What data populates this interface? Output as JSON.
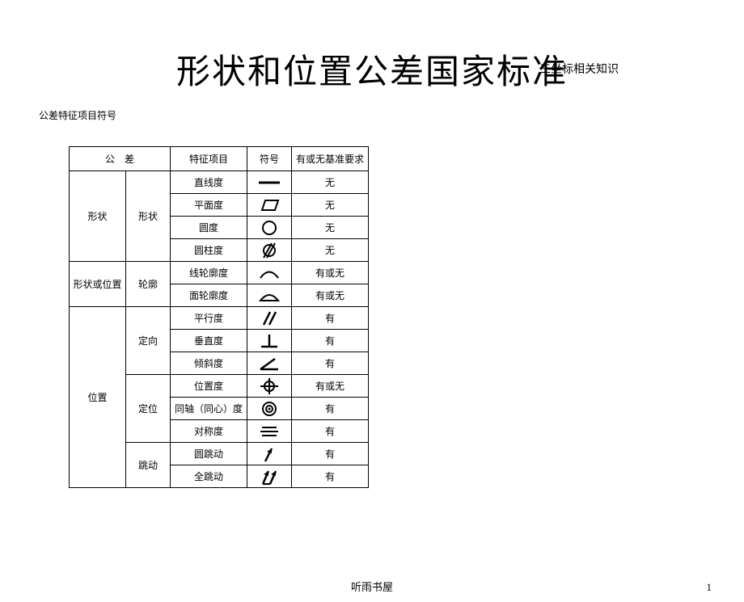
{
  "header_note": "三坐标相关知识",
  "title": "形状和位置公差国家标准",
  "subtitle": "公差特征项目符号",
  "footer": "听雨书屋",
  "page_number": "1",
  "headers": {
    "tolerance": "公　差",
    "feature": "特征项目",
    "symbol": "符号",
    "requirement": "有或无基准要求"
  },
  "groups": [
    {
      "major": "形状",
      "subs": [
        {
          "sub": "形状",
          "rows": [
            {
              "feature": "直线度",
              "icon": "straightness",
              "req": "无"
            },
            {
              "feature": "平面度",
              "icon": "flatness",
              "req": "无"
            },
            {
              "feature": "圆度",
              "icon": "roundness",
              "req": "无"
            },
            {
              "feature": "圆柱度",
              "icon": "cylindricity",
              "req": "无"
            }
          ]
        }
      ]
    },
    {
      "major": "形状或位置",
      "subs": [
        {
          "sub": "轮廓",
          "rows": [
            {
              "feature": "线轮廓度",
              "icon": "line-profile",
              "req": "有或无"
            },
            {
              "feature": "面轮廓度",
              "icon": "surface-profile",
              "req": "有或无"
            }
          ]
        }
      ]
    },
    {
      "major": "位置",
      "subs": [
        {
          "sub": "定向",
          "rows": [
            {
              "feature": "平行度",
              "icon": "parallelism",
              "req": "有"
            },
            {
              "feature": "垂直度",
              "icon": "perpendicularity",
              "req": "有"
            },
            {
              "feature": "倾斜度",
              "icon": "angularity",
              "req": "有"
            }
          ]
        },
        {
          "sub": "定位",
          "rows": [
            {
              "feature": "位置度",
              "icon": "position",
              "req": "有或无"
            },
            {
              "feature": "同轴（同心）度",
              "icon": "concentricity",
              "req": "有"
            },
            {
              "feature": "对称度",
              "icon": "symmetry",
              "req": "有"
            }
          ]
        },
        {
          "sub": "跳动",
          "rows": [
            {
              "feature": "圆跳动",
              "icon": "circular-runout",
              "req": "有"
            },
            {
              "feature": "全跳动",
              "icon": "total-runout",
              "req": "有"
            }
          ]
        }
      ]
    }
  ]
}
